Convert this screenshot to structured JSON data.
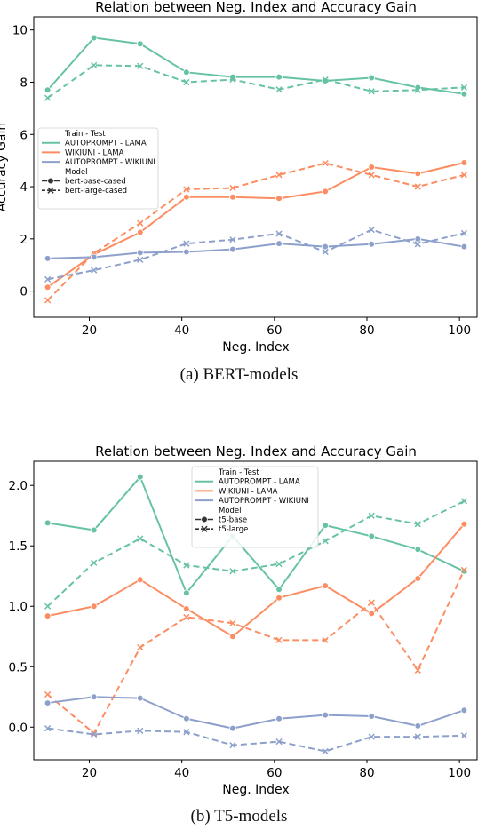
{
  "chart_data": [
    {
      "type": "line",
      "title": "Relation between Neg. Index and Accuracy Gain",
      "xlabel": "Neg. Index",
      "ylabel": "Accuracy Gain",
      "caption": "(a) BERT-models",
      "x": [
        11,
        21,
        31,
        41,
        51,
        61,
        71,
        81,
        91,
        101
      ],
      "xlim": [
        8,
        104
      ],
      "ylim": [
        -1,
        10.5
      ],
      "xticks": [
        20,
        40,
        60,
        80,
        100
      ],
      "yticks": [
        0,
        2,
        4,
        6,
        8,
        10
      ],
      "ytick_labels": [
        "0",
        "2",
        "4",
        "6",
        "8",
        "10"
      ],
      "legend": {
        "placement": "center-left",
        "hue_title": "Train - Test",
        "style_title": "Model",
        "hue_entries": [
          {
            "label": "AUTOPROMPT - LAMA",
            "color": "#66c2a5"
          },
          {
            "label": "WIKIUNI - LAMA",
            "color": "#fc8d62"
          },
          {
            "label": "AUTOPROMPT - WIKIUNI",
            "color": "#8da0cb"
          }
        ],
        "style_entries": [
          {
            "label": "bert-base-cased",
            "marker": "circle",
            "dash": "solid"
          },
          {
            "label": "bert-large-cased",
            "marker": "x",
            "dash": "dashed"
          }
        ]
      },
      "series": [
        {
          "name": "AUTOPROMPT - LAMA",
          "model": "bert-base-cased",
          "color": "#66c2a5",
          "dashed": false,
          "marker": "circle",
          "values": [
            7.7,
            9.7,
            9.47,
            8.38,
            8.2,
            8.2,
            8.05,
            8.17,
            7.8,
            7.55
          ]
        },
        {
          "name": "AUTOPROMPT - LAMA",
          "model": "bert-large-cased",
          "color": "#66c2a5",
          "dashed": true,
          "marker": "x",
          "values": [
            7.4,
            8.65,
            8.62,
            8.0,
            8.1,
            7.72,
            8.1,
            7.65,
            7.7,
            7.8
          ]
        },
        {
          "name": "WIKIUNI - LAMA",
          "model": "bert-base-cased",
          "color": "#fc8d62",
          "dashed": false,
          "marker": "circle",
          "values": [
            0.15,
            1.4,
            2.25,
            3.6,
            3.6,
            3.55,
            3.82,
            4.75,
            4.5,
            4.92
          ]
        },
        {
          "name": "WIKIUNI - LAMA",
          "model": "bert-large-cased",
          "color": "#fc8d62",
          "dashed": true,
          "marker": "x",
          "values": [
            -0.35,
            1.45,
            2.6,
            3.9,
            3.95,
            4.45,
            4.9,
            4.45,
            4.0,
            4.45
          ]
        },
        {
          "name": "AUTOPROMPT - WIKIUNI",
          "model": "bert-base-cased",
          "color": "#8da0cb",
          "dashed": false,
          "marker": "circle",
          "values": [
            1.25,
            1.3,
            1.47,
            1.5,
            1.6,
            1.82,
            1.7,
            1.8,
            2.0,
            1.7
          ]
        },
        {
          "name": "AUTOPROMPT - WIKIUNI",
          "model": "bert-large-cased",
          "color": "#8da0cb",
          "dashed": true,
          "marker": "x",
          "values": [
            0.45,
            0.8,
            1.2,
            1.82,
            1.97,
            2.2,
            1.5,
            2.35,
            1.8,
            2.22
          ]
        }
      ]
    },
    {
      "type": "line",
      "title": "Relation between Neg. Index and Accuracy Gain",
      "xlabel": "Neg. Index",
      "ylabel": "",
      "caption": "(b) T5-models",
      "x": [
        11,
        21,
        31,
        41,
        51,
        61,
        71,
        81,
        91,
        101
      ],
      "xlim": [
        8,
        104
      ],
      "ylim": [
        -0.27,
        2.2
      ],
      "xticks": [
        20,
        40,
        60,
        80,
        100
      ],
      "yticks": [
        0,
        0.5,
        1,
        1.5,
        2
      ],
      "ytick_labels": [
        "0.0",
        "0.5",
        "1.0",
        "1.5",
        "2.0"
      ],
      "legend": {
        "placement": "upper-center",
        "hue_title": "Train - Test",
        "style_title": "Model",
        "hue_entries": [
          {
            "label": "AUTOPROMPT - LAMA",
            "color": "#66c2a5"
          },
          {
            "label": "WIKIUNI - LAMA",
            "color": "#fc8d62"
          },
          {
            "label": "AUTOPROMPT - WIKIUNI",
            "color": "#8da0cb"
          }
        ],
        "style_entries": [
          {
            "label": "t5-base",
            "marker": "circle",
            "dash": "solid"
          },
          {
            "label": "t5-large",
            "marker": "x",
            "dash": "dashed"
          }
        ]
      },
      "series": [
        {
          "name": "AUTOPROMPT - LAMA",
          "model": "t5-base",
          "color": "#66c2a5",
          "dashed": false,
          "marker": "circle",
          "values": [
            1.69,
            1.63,
            2.07,
            1.11,
            1.58,
            1.14,
            1.67,
            1.58,
            1.47,
            1.29
          ]
        },
        {
          "name": "AUTOPROMPT - LAMA",
          "model": "t5-large",
          "color": "#66c2a5",
          "dashed": true,
          "marker": "x",
          "values": [
            1.0,
            1.36,
            1.56,
            1.34,
            1.29,
            1.35,
            1.54,
            1.75,
            1.68,
            1.87
          ]
        },
        {
          "name": "WIKIUNI - LAMA",
          "model": "t5-base",
          "color": "#fc8d62",
          "dashed": false,
          "marker": "circle",
          "values": [
            0.92,
            1.0,
            1.22,
            0.98,
            0.75,
            1.07,
            1.17,
            0.94,
            1.23,
            1.68
          ]
        },
        {
          "name": "WIKIUNI - LAMA",
          "model": "t5-large",
          "color": "#fc8d62",
          "dashed": true,
          "marker": "x",
          "values": [
            0.27,
            -0.05,
            0.66,
            0.91,
            0.86,
            0.72,
            0.72,
            1.03,
            0.47,
            1.3
          ]
        },
        {
          "name": "AUTOPROMPT - WIKIUNI",
          "model": "t5-base",
          "color": "#8da0cb",
          "dashed": false,
          "marker": "circle",
          "values": [
            0.2,
            0.25,
            0.24,
            0.07,
            -0.01,
            0.07,
            0.1,
            0.09,
            0.01,
            0.14
          ]
        },
        {
          "name": "AUTOPROMPT - WIKIUNI",
          "model": "t5-large",
          "color": "#8da0cb",
          "dashed": true,
          "marker": "x",
          "values": [
            -0.01,
            -0.06,
            -0.03,
            -0.04,
            -0.15,
            -0.12,
            -0.2,
            -0.08,
            -0.08,
            -0.07
          ]
        }
      ]
    }
  ]
}
